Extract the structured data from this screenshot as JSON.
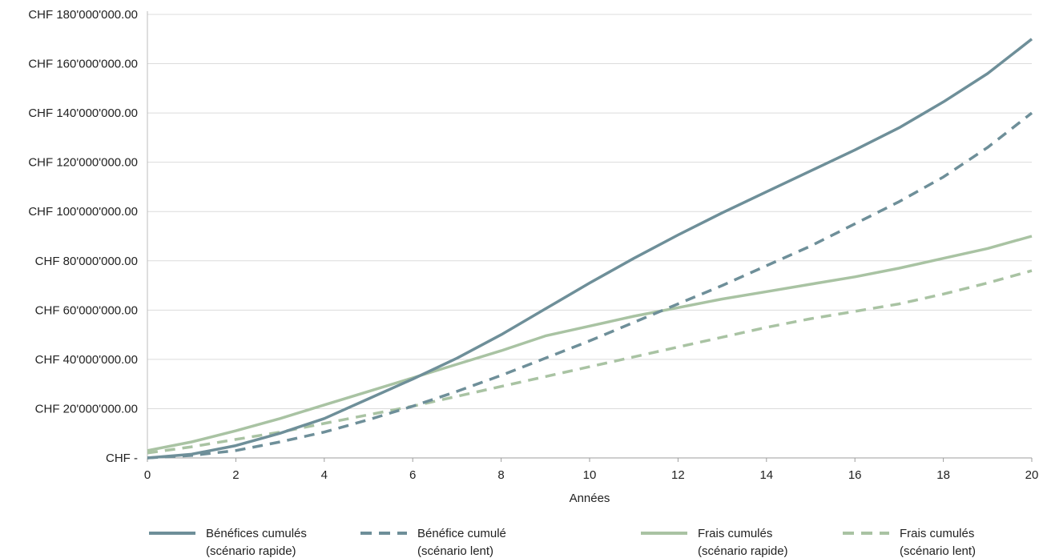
{
  "chart_data": {
    "type": "line",
    "title": "",
    "xlabel": "Années",
    "ylabel": "",
    "xlim": [
      0,
      20
    ],
    "ylim": [
      0,
      180000000
    ],
    "x_ticks": [
      0,
      2,
      4,
      6,
      8,
      10,
      12,
      14,
      16,
      18,
      20
    ],
    "x_tick_labels": [
      "0",
      "2",
      "4",
      "6",
      "8",
      "10",
      "12",
      "14",
      "16",
      "18",
      "20"
    ],
    "y_ticks": [
      0,
      20000000,
      40000000,
      60000000,
      80000000,
      100000000,
      120000000,
      140000000,
      160000000,
      180000000
    ],
    "y_tick_labels": [
      "CHF -",
      "CHF 20'000'000.00",
      "CHF 40'000'000.00",
      "CHF 60'000'000.00",
      "CHF 80'000'000.00",
      "CHF 100'000'000.00",
      "CHF 120'000'000.00",
      "CHF 140'000'000.00",
      "CHF 160'000'000.00",
      "CHF 180'000'000.00"
    ],
    "grid": "horizontal",
    "legend_position": "bottom",
    "x": [
      0,
      1,
      2,
      3,
      4,
      5,
      6,
      7,
      8,
      9,
      10,
      11,
      12,
      13,
      14,
      15,
      16,
      17,
      18,
      19,
      20
    ],
    "series": [
      {
        "name_line1": "Bénéfices cumulés",
        "name_line2": "(scénario rapide)",
        "color": "#6e8f99",
        "style": "solid",
        "values": [
          0,
          1500000,
          5000000,
          10000000,
          16000000,
          24000000,
          32000000,
          40500000,
          50000000,
          60500000,
          71000000,
          81000000,
          90500000,
          99500000,
          108000000,
          116500000,
          125000000,
          134000000,
          144500000,
          156000000,
          170000000
        ]
      },
      {
        "name_line1": "Bénéfice cumulé",
        "name_line2": "(scénario lent)",
        "color": "#6e8f99",
        "style": "dashed",
        "values": [
          0,
          1000000,
          3000000,
          6500000,
          10500000,
          15500000,
          21000000,
          27000000,
          33500000,
          40500000,
          47500000,
          55000000,
          62500000,
          70000000,
          78000000,
          86000000,
          95000000,
          104000000,
          114000000,
          126000000,
          140000000
        ]
      },
      {
        "name_line1": "Frais cumulés",
        "name_line2": "(scénario rapide)",
        "color": "#a9c3a3",
        "style": "solid",
        "values": [
          3000000,
          6500000,
          11000000,
          16000000,
          21500000,
          27000000,
          32500000,
          38000000,
          43500000,
          49500000,
          53500000,
          57500000,
          61000000,
          64500000,
          67500000,
          70500000,
          73500000,
          77000000,
          81000000,
          85000000,
          90000000
        ]
      },
      {
        "name_line1": "Frais cumulés",
        "name_line2": "(scénario lent)",
        "color": "#a9c3a3",
        "style": "dashed",
        "values": [
          2000000,
          4500000,
          7500000,
          10500000,
          14000000,
          17500000,
          21000000,
          25000000,
          29000000,
          33000000,
          37000000,
          41000000,
          45000000,
          49000000,
          53000000,
          56500000,
          59500000,
          62500000,
          66500000,
          71000000,
          76000000
        ]
      }
    ]
  }
}
